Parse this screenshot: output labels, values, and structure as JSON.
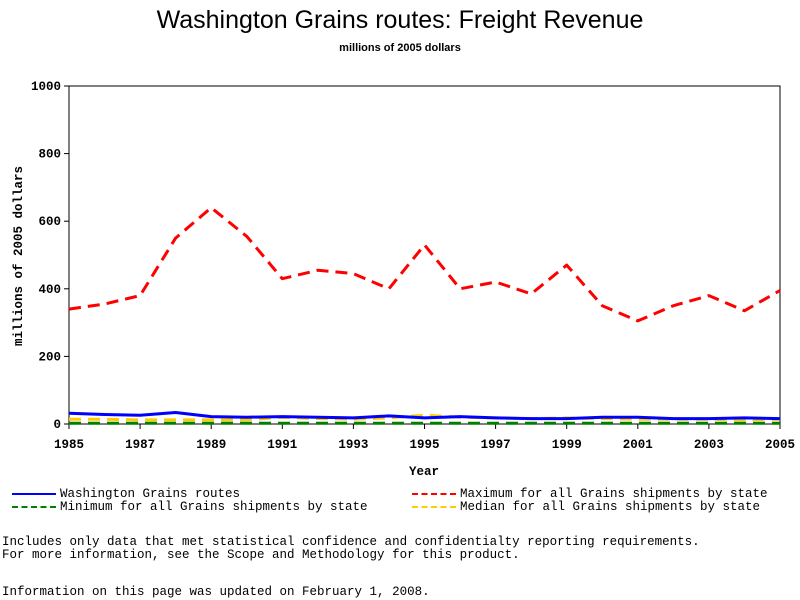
{
  "chart_data": {
    "type": "line",
    "title": "Washington Grains routes: Freight Revenue",
    "subtitle": "millions of 2005 dollars",
    "xlabel": "Year",
    "ylabel": "millions of 2005 dollars",
    "xlim": [
      1985,
      2005
    ],
    "ylim": [
      0,
      1000
    ],
    "x_ticks": [
      "1985",
      "1987",
      "1989",
      "1991",
      "1993",
      "1995",
      "1997",
      "1999",
      "2001",
      "2003",
      "2005"
    ],
    "y_ticks": [
      "0",
      "200",
      "400",
      "600",
      "800",
      "1000"
    ],
    "x": [
      1985,
      1986,
      1987,
      1988,
      1989,
      1990,
      1991,
      1992,
      1993,
      1994,
      1995,
      1996,
      1997,
      1998,
      1999,
      2000,
      2001,
      2002,
      2003,
      2004,
      2005
    ],
    "grid": false,
    "series": [
      {
        "name": "Washington Grains routes",
        "color": "#0000ff",
        "dash": "solid",
        "values": [
          32,
          28,
          26,
          34,
          22,
          20,
          22,
          20,
          18,
          24,
          18,
          22,
          18,
          16,
          16,
          20,
          20,
          16,
          16,
          18,
          16
        ]
      },
      {
        "name": "Maximum for all Grains shipments by state",
        "color": "#ff0000",
        "dash": "dashed",
        "values": [
          340,
          355,
          380,
          550,
          640,
          555,
          430,
          455,
          445,
          400,
          530,
          400,
          420,
          385,
          470,
          350,
          305,
          350,
          380,
          335,
          395
        ]
      },
      {
        "name": "Minimum for all Grains shipments by state",
        "color": "#008000",
        "dash": "dashed",
        "values": [
          2,
          2,
          2,
          2,
          2,
          2,
          2,
          2,
          2,
          2,
          2,
          2,
          2,
          2,
          2,
          2,
          2,
          2,
          2,
          2,
          2
        ]
      },
      {
        "name": "Median for all Grains shipments by state",
        "color": "#ffcc00",
        "dash": "dashed",
        "values": [
          14,
          14,
          12,
          12,
          12,
          12,
          20,
          16,
          14,
          18,
          26,
          20,
          18,
          16,
          18,
          16,
          14,
          14,
          14,
          12,
          14
        ]
      }
    ]
  },
  "notes": {
    "line1": "Includes only data that met statistical confidence and confidentialty reporting requirements.",
    "line2": "For more information, see the Scope and Methodology for this product.",
    "line3": "Information on this page was updated on February 1, 2008."
  }
}
